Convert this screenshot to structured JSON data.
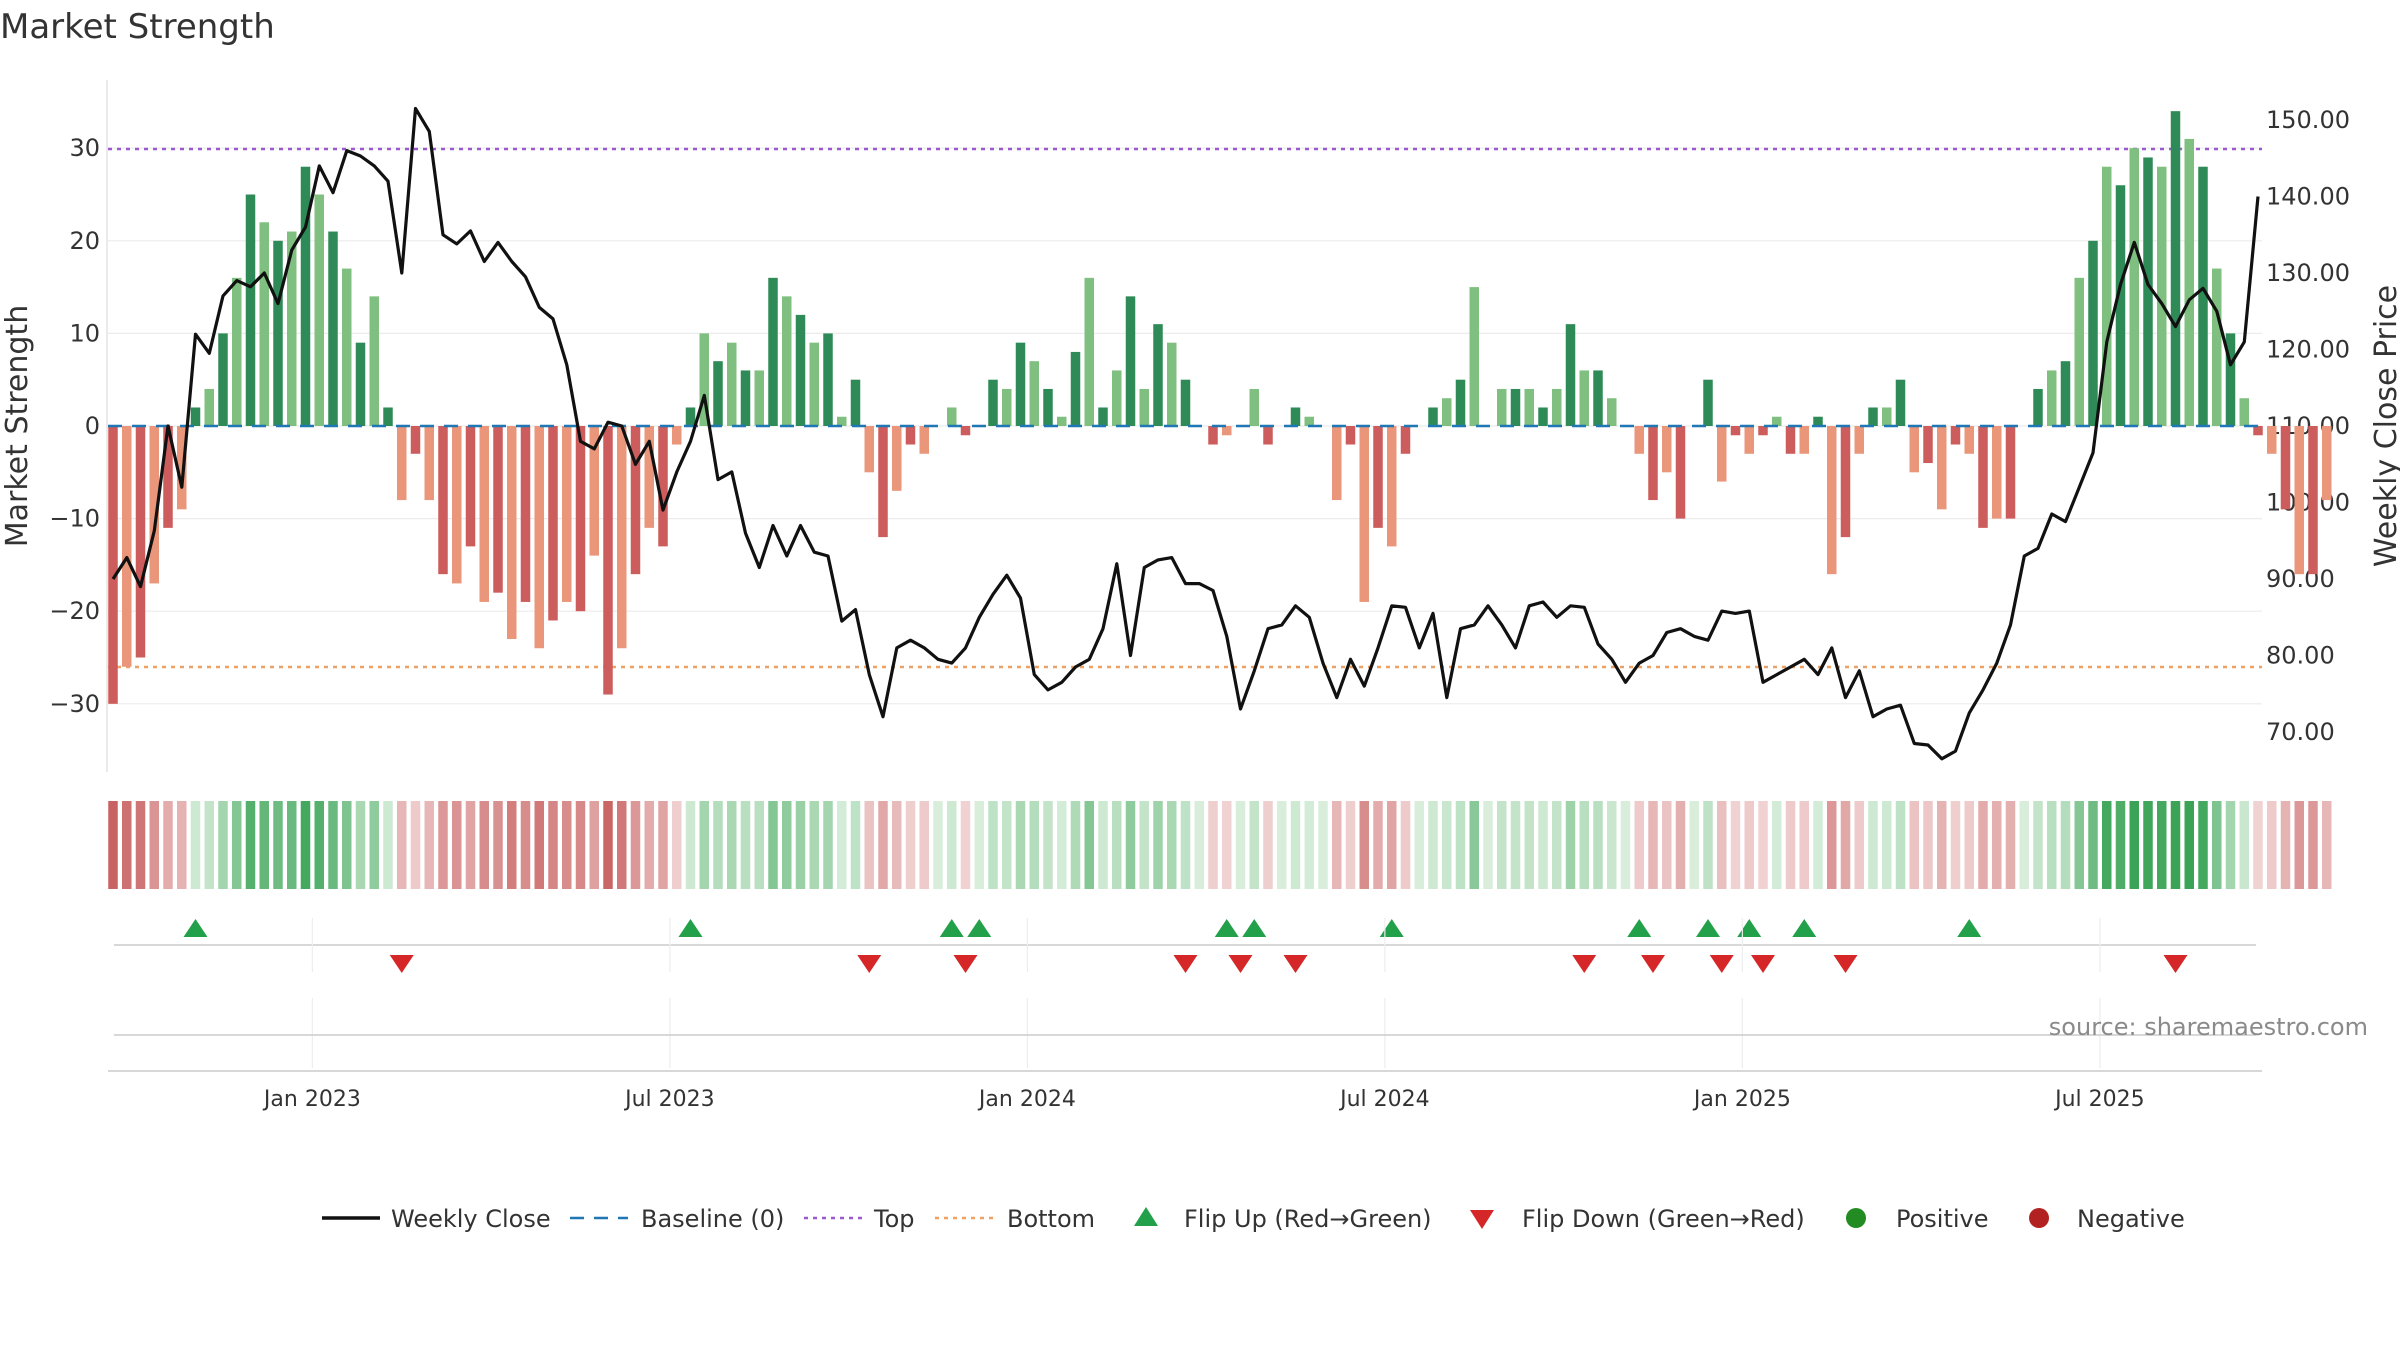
{
  "chart_data": {
    "type": "bar+line",
    "title": "Market Strength",
    "ylabel_left": "Market Strength",
    "ylabel_right": "Weekly Close Price",
    "source": "source: sharemaestro.com",
    "left_axis": {
      "ylim": [
        -36.5,
        37
      ],
      "ticks": [
        -30,
        -20,
        -10,
        0,
        10,
        20,
        30
      ]
    },
    "right_axis": {
      "ylim": [
        65,
        156
      ],
      "ticks": [
        "70.00",
        "80.00",
        "90.00",
        "100.00",
        "110.00",
        "120.00",
        "130.00",
        "140.00",
        "150.00"
      ]
    },
    "top_line": 30,
    "bottom_line": -26,
    "x_labels": [
      {
        "label": "Jan 2023",
        "week": 14.5
      },
      {
        "label": "Jul 2023",
        "week": 40.5
      },
      {
        "label": "Jan 2024",
        "week": 66.5
      },
      {
        "label": "Jul 2024",
        "week": 92.5
      },
      {
        "label": "Jan 2025",
        "week": 118.5
      },
      {
        "label": "Jul 2025",
        "week": 144.5
      }
    ],
    "strength": [
      -30,
      -26,
      -25,
      -17,
      -11,
      -9,
      2,
      4,
      10,
      16,
      25,
      22,
      20,
      21,
      28,
      25,
      21,
      17,
      9,
      14,
      2,
      -8,
      -3,
      -8,
      -16,
      -17,
      -13,
      -19,
      -18,
      -23,
      -19,
      -24,
      -21,
      -19,
      -20,
      -14,
      -29,
      -24,
      -16,
      -11,
      -13,
      -2,
      2,
      10,
      7,
      9,
      6,
      6,
      16,
      14,
      12,
      9,
      10,
      1,
      5,
      -5,
      -12,
      -7,
      -2,
      -3,
      0,
      2,
      -1,
      0,
      5,
      4,
      9,
      7,
      4,
      1,
      8,
      16,
      2,
      6,
      14,
      4,
      11,
      9,
      5,
      0,
      -2,
      -1,
      0,
      4,
      -2,
      0,
      2,
      1,
      0,
      -8,
      -2,
      -19,
      -11,
      -13,
      -3,
      0,
      2,
      3,
      5,
      15,
      0,
      4,
      4,
      4,
      2,
      4,
      11,
      6,
      6,
      3,
      0,
      -3,
      -8,
      -5,
      -10,
      0,
      5,
      -6,
      -1,
      -3,
      -1,
      1,
      -3,
      -3,
      1,
      -16,
      -12,
      -3,
      2,
      2,
      5,
      -5,
      -4,
      -9,
      -2,
      -3,
      -11,
      -10,
      -10,
      0,
      4,
      6,
      7,
      16,
      20,
      28,
      26,
      30,
      29,
      28,
      34,
      31,
      28,
      17,
      10,
      3,
      -1,
      -3,
      -9,
      -16,
      -16,
      -8
    ],
    "weekly_close": [
      90,
      92.8,
      89,
      96.3,
      110,
      102,
      122,
      119.5,
      127,
      129,
      128.2,
      130,
      126,
      133,
      136,
      144,
      140.5,
      146,
      145.3,
      144,
      142,
      130,
      151.5,
      148.5,
      135,
      133.8,
      135.5,
      131.5,
      134,
      131.5,
      129.5,
      125.5,
      124,
      118,
      108,
      107,
      110.5,
      110,
      105,
      108,
      99,
      104,
      108,
      114,
      103,
      104,
      96,
      91.5,
      97,
      93,
      97,
      93.5,
      93,
      84.5,
      86,
      77.5,
      72,
      81,
      82,
      81,
      79.5,
      79,
      81,
      85,
      88,
      90.5,
      87.5,
      77.5,
      75.5,
      76.5,
      78.5,
      79.5,
      83.5,
      92,
      80,
      91.5,
      92.5,
      92.8,
      89.4,
      89.4,
      88.5,
      82.5,
      73,
      78,
      83.5,
      84,
      86.5,
      85,
      79,
      74.5,
      79.5,
      76,
      81,
      86.5,
      86.3,
      81,
      85.5,
      74.5,
      83.5,
      84,
      86.5,
      84,
      81,
      86.5,
      87,
      85,
      86.5,
      86.3,
      81.5,
      79.5,
      76.5,
      79,
      80,
      83,
      83.5,
      82.5,
      82,
      85.8,
      85.5,
      85.8,
      76.5,
      77.5,
      78.5,
      79.5,
      77.5,
      81,
      74.5,
      78,
      72,
      73,
      73.5,
      68.5,
      68.3,
      66.5,
      67.5,
      72.5,
      75.5,
      79,
      84,
      93,
      94,
      98.5,
      97.5,
      102,
      106.5,
      121,
      128.5,
      134,
      128.5,
      126,
      123,
      126.5,
      128,
      125,
      118,
      121,
      140
    ],
    "flip_up_weeks": [
      6,
      42,
      61,
      63,
      81,
      83,
      93,
      111,
      116,
      119,
      123,
      135
    ],
    "flip_down_weeks": [
      21,
      55,
      62,
      78,
      82,
      86,
      107,
      112,
      117,
      120,
      126,
      150
    ],
    "legend": [
      {
        "label": "Weekly Close",
        "kind": "line"
      },
      {
        "label": "Baseline (0)",
        "kind": "dash"
      },
      {
        "label": "Top",
        "kind": "dot-purple"
      },
      {
        "label": "Bottom",
        "kind": "dot-orange"
      },
      {
        "label": "Flip Up (Red→Green)",
        "kind": "tri-up"
      },
      {
        "label": "Flip Down (Green→Red)",
        "kind": "tri-down"
      },
      {
        "label": "Positive",
        "kind": "circle-green"
      },
      {
        "label": "Negative",
        "kind": "circle-red"
      }
    ],
    "colors": {
      "pos_strong": "#2e8b57",
      "pos_light": "#7fbf7f",
      "neg_strong": "#cd5c5c",
      "neg_light": "#e9967a",
      "line": "#111111",
      "baseline": "#1f77b4",
      "top": "#9b59d0",
      "bottom": "#f0a060",
      "up_marker": "#22a04a",
      "down_marker": "#d62728",
      "positive": "#228b22",
      "negative": "#b22222"
    }
  }
}
